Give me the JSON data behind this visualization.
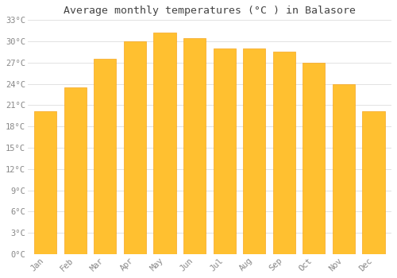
{
  "title": "Average monthly temperatures (°C ) in Balasore",
  "months": [
    "Jan",
    "Feb",
    "Mar",
    "Apr",
    "May",
    "Jun",
    "Jul",
    "Aug",
    "Sep",
    "Oct",
    "Nov",
    "Dec"
  ],
  "values": [
    20.2,
    23.5,
    27.5,
    30.0,
    31.2,
    30.5,
    29.0,
    29.0,
    28.5,
    27.0,
    24.0,
    20.2
  ],
  "bar_color_face": "#FFC030",
  "bar_color_edge": "#F5A623",
  "background_color": "#FFFFFF",
  "grid_color": "#DDDDDD",
  "ylim": [
    0,
    33
  ],
  "yticks": [
    0,
    3,
    6,
    9,
    12,
    15,
    18,
    21,
    24,
    27,
    30,
    33
  ],
  "title_fontsize": 9.5,
  "tick_fontsize": 7.5,
  "title_color": "#444444",
  "tick_color": "#888888",
  "bar_width": 0.75
}
